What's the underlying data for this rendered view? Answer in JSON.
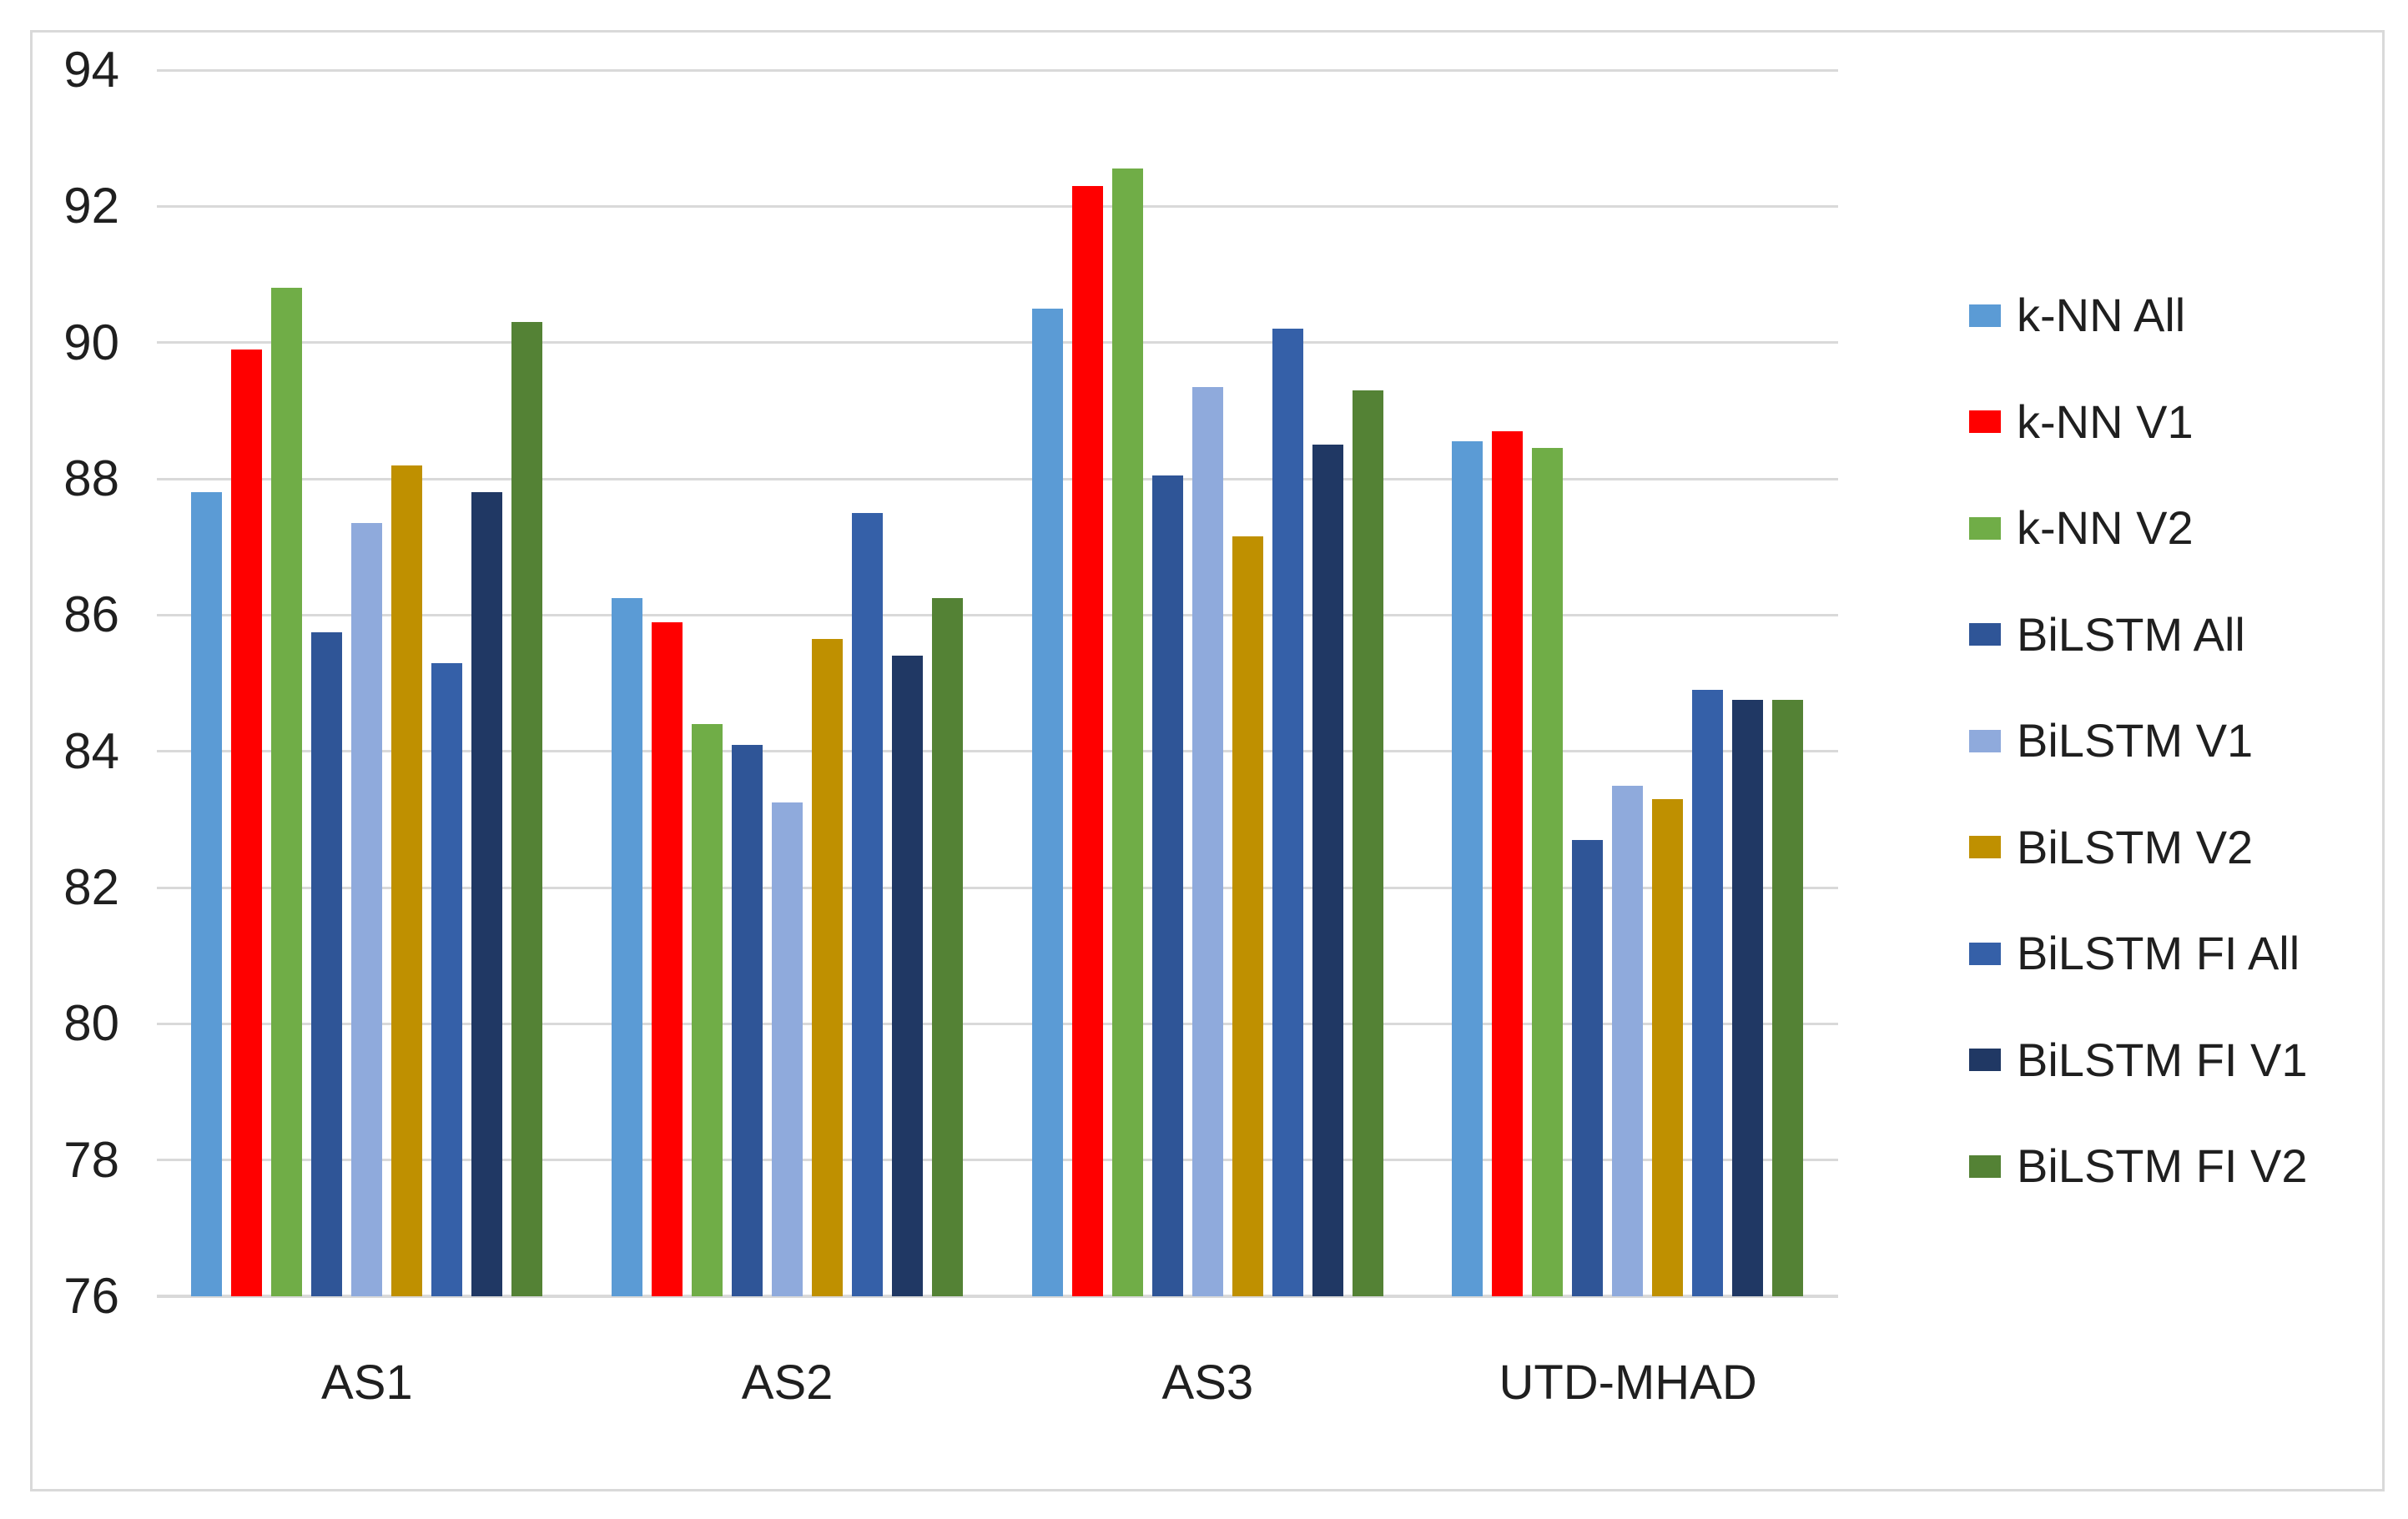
{
  "chart_data": {
    "type": "bar",
    "title": "",
    "xlabel": "",
    "ylabel": "",
    "categories": [
      "AS1",
      "AS2",
      "AS3",
      "UTD-MHAD"
    ],
    "series": [
      {
        "name": "k-NN All",
        "color": "#5B9BD5",
        "values": [
          87.8,
          86.25,
          90.5,
          88.55
        ]
      },
      {
        "name": "k-NN V1",
        "color": "#FF0000",
        "values": [
          89.9,
          85.9,
          92.3,
          88.7
        ]
      },
      {
        "name": "k-NN V2",
        "color": "#70AD47",
        "values": [
          90.8,
          84.4,
          92.55,
          88.45
        ]
      },
      {
        "name": "BiLSTM All",
        "color": "#2F5597",
        "values": [
          85.75,
          84.1,
          88.05,
          82.7
        ]
      },
      {
        "name": "BiLSTM V1",
        "color": "#8FAADC",
        "values": [
          87.35,
          83.25,
          89.35,
          83.5
        ]
      },
      {
        "name": "BiLSTM V2",
        "color": "#BF9000",
        "values": [
          88.2,
          85.65,
          87.15,
          83.3
        ]
      },
      {
        "name": "BiLSTM FI All",
        "color": "#3560A8",
        "values": [
          85.3,
          87.5,
          90.2,
          84.9
        ]
      },
      {
        "name": "BiLSTM FI V1",
        "color": "#203864",
        "values": [
          87.8,
          85.4,
          88.5,
          84.75
        ]
      },
      {
        "name": "BiLSTM FI V2",
        "color": "#548235",
        "values": [
          90.3,
          86.25,
          89.3,
          84.75
        ]
      }
    ],
    "y_axis": {
      "min": 76,
      "max": 94,
      "step": 2,
      "tick_labels": [
        "76",
        "78",
        "80",
        "82",
        "84",
        "86",
        "88",
        "90",
        "92",
        "94"
      ]
    },
    "grid": true,
    "legend_position": "right"
  },
  "colors": {
    "background": "#FFFFFF",
    "chart_border": "#D9D9D9",
    "gridline": "#D9D9D9",
    "axis_line": "#D9D9D9",
    "text": "#1F1F1F"
  }
}
